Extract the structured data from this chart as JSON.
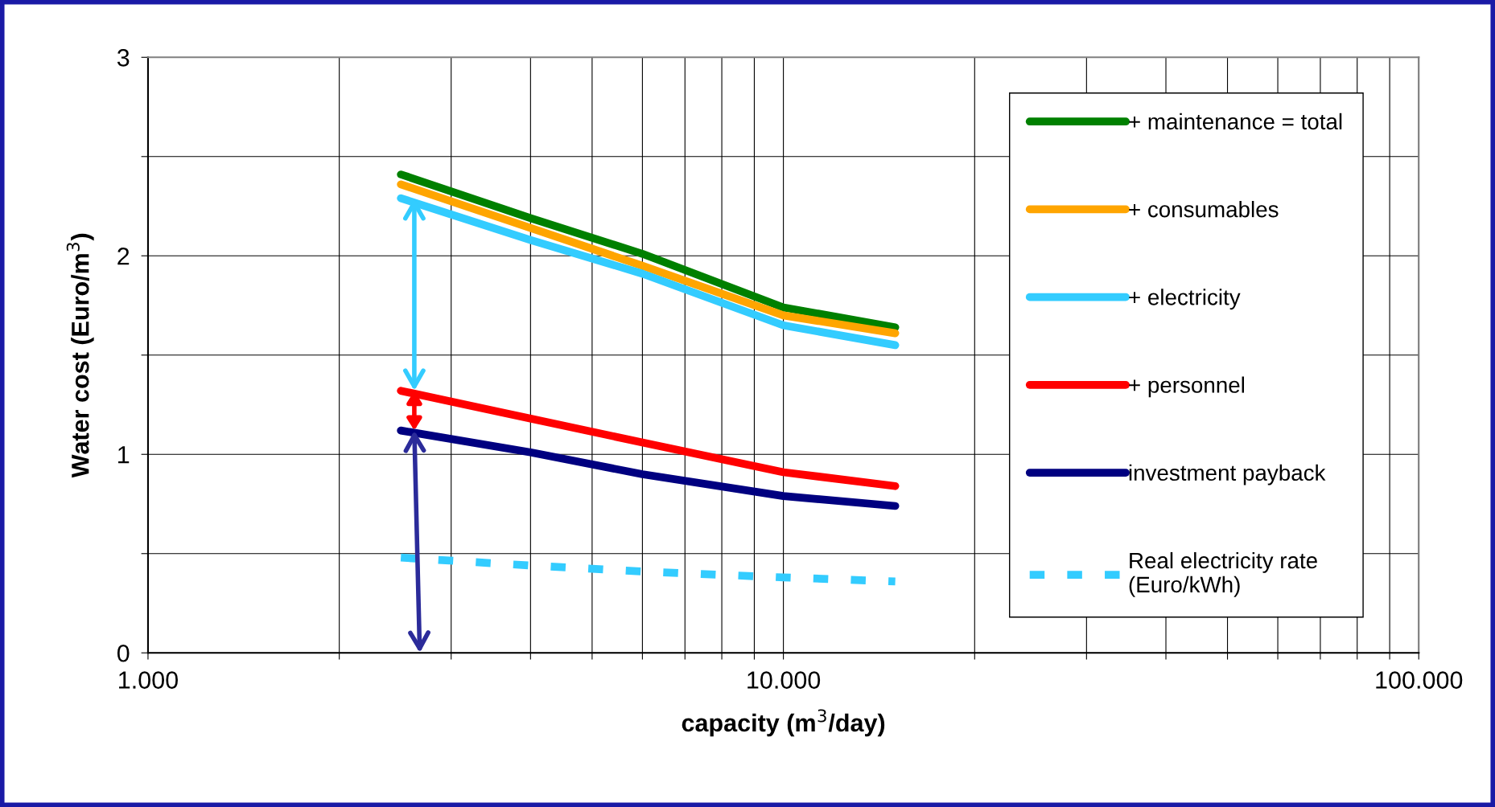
{
  "chart_data": {
    "type": "line",
    "xlabel": "capacity (m$^{3}$/day)",
    "ylabel": "Water cost (Euro/m$^{3}$)",
    "x": [
      2500,
      4000,
      6000,
      10000,
      15000
    ],
    "series": [
      {
        "name": "+ maintenance = total",
        "color": "#008000",
        "values": [
          2.41,
          2.19,
          2.01,
          1.74,
          1.64
        ]
      },
      {
        "name": "+ consumables",
        "color": "#ffa500",
        "values": [
          2.36,
          2.14,
          1.95,
          1.7,
          1.61
        ]
      },
      {
        "name": "+ electricity",
        "color": "#33ccff",
        "values": [
          2.29,
          2.08,
          1.91,
          1.65,
          1.55
        ]
      },
      {
        "name": "+ personnel",
        "color": "#ff0000",
        "values": [
          1.32,
          1.18,
          1.06,
          0.91,
          0.84
        ]
      },
      {
        "name": "investment payback",
        "color": "#000080",
        "values": [
          1.12,
          1.01,
          0.9,
          0.79,
          0.74
        ]
      },
      {
        "name": "Real electricity rate\n(Euro/kWh)",
        "color": "#33ccff",
        "line_style": "dashed",
        "values": [
          0.48,
          0.44,
          0.41,
          0.38,
          0.36
        ]
      }
    ],
    "log": "x",
    "xlim": [
      1000,
      100000
    ],
    "xticks": [
      {
        "value": 1000,
        "label": "1.000"
      },
      {
        "value": 2000,
        "label": null
      },
      {
        "value": 3000,
        "label": null
      },
      {
        "value": 4000,
        "label": null
      },
      {
        "value": 5000,
        "label": null
      },
      {
        "value": 6000,
        "label": null
      },
      {
        "value": 7000,
        "label": null
      },
      {
        "value": 8000,
        "label": null
      },
      {
        "value": 9000,
        "label": null
      },
      {
        "value": 10000,
        "label": "10.000"
      },
      {
        "value": 20000,
        "label": null
      },
      {
        "value": 30000,
        "label": null
      },
      {
        "value": 40000,
        "label": null
      },
      {
        "value": 50000,
        "label": null
      },
      {
        "value": 60000,
        "label": null
      },
      {
        "value": 70000,
        "label": null
      },
      {
        "value": 80000,
        "label": null
      },
      {
        "value": 90000,
        "label": null
      },
      {
        "value": 100000,
        "label": "100.000"
      }
    ],
    "ylim": [
      0,
      3
    ],
    "yticks": [
      0,
      {
        "value": 0.5,
        "label": null
      },
      1,
      {
        "value": 1.5,
        "label": null
      },
      2,
      {
        "value": 2.5,
        "label": null
      },
      3
    ],
    "grid": true,
    "legend": "right",
    "line_style": "solid",
    "marker": "none"
  }
}
